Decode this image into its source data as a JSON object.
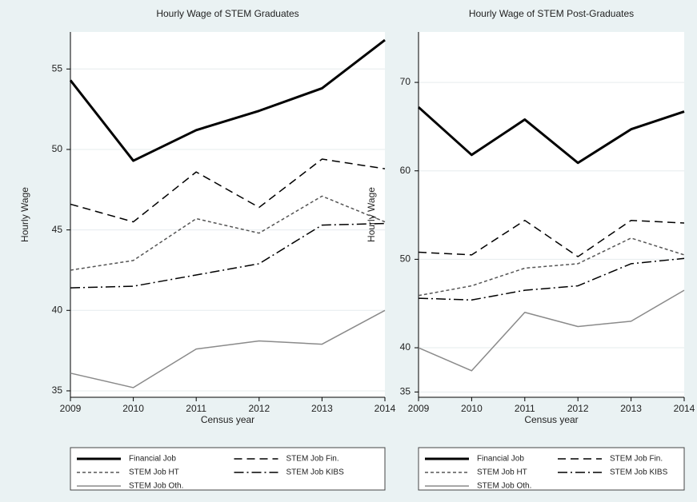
{
  "chart_data": [
    {
      "type": "line",
      "title": "Hourly Wage of STEM Graduates",
      "xlabel": "Census year",
      "ylabel": "Hourly Wage",
      "x": [
        2009,
        2010,
        2011,
        2012,
        2013,
        2014
      ],
      "xlim": [
        2009,
        2014
      ],
      "xticks": [
        2009,
        2010,
        2011,
        2012,
        2013,
        2014
      ],
      "ylim": [
        34.6,
        57.3
      ],
      "yticks": [
        35,
        40,
        45,
        50,
        55
      ],
      "grid": true,
      "series": [
        {
          "name": "Financial Job",
          "color": "#000000",
          "dash": "solid",
          "width": 3,
          "values": [
            54.3,
            49.3,
            51.2,
            52.4,
            53.8,
            56.8
          ]
        },
        {
          "name": "STEM Job Fin.",
          "color": "#000000",
          "dash": "dashed",
          "width": 1.5,
          "values": [
            46.6,
            45.5,
            48.6,
            46.4,
            49.4,
            48.8
          ]
        },
        {
          "name": "STEM Job HT",
          "color": "#555555",
          "dash": "dotted",
          "width": 1.5,
          "values": [
            42.5,
            43.1,
            45.7,
            44.8,
            47.1,
            45.5
          ]
        },
        {
          "name": "STEM Job KIBS",
          "color": "#000000",
          "dash": "dashdot",
          "width": 1.5,
          "values": [
            41.4,
            41.5,
            42.2,
            42.9,
            45.3,
            45.4
          ]
        },
        {
          "name": "STEM Job Oth.",
          "color": "#8a8a8a",
          "dash": "solid",
          "width": 1.5,
          "values": [
            36.1,
            35.2,
            37.6,
            38.1,
            37.9,
            40.0
          ]
        }
      ]
    },
    {
      "type": "line",
      "title": "Hourly Wage of STEM Post-Graduates",
      "xlabel": "Census year",
      "ylabel": "Hourly Wage",
      "x": [
        2009,
        2010,
        2011,
        2012,
        2013,
        2014
      ],
      "xlim": [
        2009,
        2014
      ],
      "xticks": [
        2009,
        2010,
        2011,
        2012,
        2013,
        2014
      ],
      "ylim": [
        34.4,
        75.7
      ],
      "yticks": [
        35,
        40,
        50,
        60,
        70
      ],
      "grid": true,
      "series": [
        {
          "name": "Financial Job",
          "color": "#000000",
          "dash": "solid",
          "width": 3,
          "values": [
            67.2,
            61.8,
            65.8,
            60.9,
            64.7,
            66.7
          ]
        },
        {
          "name": "STEM Job Fin.",
          "color": "#000000",
          "dash": "dashed",
          "width": 1.5,
          "values": [
            50.8,
            50.5,
            54.4,
            50.3,
            54.4,
            54.1
          ]
        },
        {
          "name": "STEM Job HT",
          "color": "#555555",
          "dash": "dotted",
          "width": 1.5,
          "values": [
            45.9,
            47.0,
            49.0,
            49.5,
            52.4,
            50.5
          ]
        },
        {
          "name": "STEM Job KIBS",
          "color": "#000000",
          "dash": "dashdot",
          "width": 1.5,
          "values": [
            45.6,
            45.4,
            46.5,
            47.0,
            49.5,
            50.1
          ]
        },
        {
          "name": "STEM Job Oth.",
          "color": "#8a8a8a",
          "dash": "solid",
          "width": 1.5,
          "values": [
            40.0,
            37.4,
            44.0,
            42.4,
            43.0,
            46.5
          ]
        }
      ]
    }
  ]
}
